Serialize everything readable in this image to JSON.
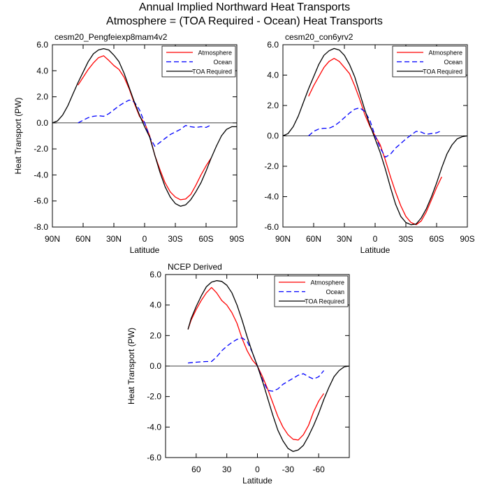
{
  "figure": {
    "title": "Annual Implied Northward Heat Transports",
    "subtitle": "Atmosphere = (TOA Required - Ocean) Heat Transports"
  },
  "colors": {
    "atmosphere": "#ff0000",
    "ocean": "#0000ff",
    "toa": "#000000"
  },
  "chart_data": [
    {
      "type": "line",
      "title": "cesm20_Pengfeiexp8mam4v2",
      "xlabel": "Latitude",
      "ylabel": "Heat Transport (PW)",
      "xlim": [
        90,
        -90
      ],
      "ylim": [
        -8,
        6
      ],
      "xticks": [
        90,
        60,
        30,
        0,
        -30,
        -60,
        -90
      ],
      "xtick_labels": [
        "90N",
        "60N",
        "30N",
        "0",
        "30S",
        "60S",
        "90S"
      ],
      "yticks": [
        -8,
        -6,
        -4,
        -2,
        0,
        2,
        4,
        6
      ],
      "ytick_labels": [
        "-8.0",
        "-6.0",
        "-4.0",
        "-2.0",
        "0.0",
        "2.0",
        "4.0",
        "6.0"
      ],
      "legend": "top-right",
      "series": [
        {
          "name": "Atmosphere",
          "style": "solid",
          "color": "#ff0000",
          "x": [
            65,
            60,
            55,
            50,
            45,
            40,
            35,
            30,
            25,
            20,
            15,
            10,
            5,
            0,
            -5,
            -10,
            -15,
            -20,
            -25,
            -30,
            -35,
            -40,
            -45,
            -50,
            -55,
            -60,
            -65
          ],
          "y": [
            2.9,
            3.5,
            4.1,
            4.6,
            5.0,
            5.15,
            4.8,
            4.4,
            4.1,
            3.5,
            2.6,
            1.5,
            0.5,
            0.0,
            -1.0,
            -2.5,
            -3.6,
            -4.6,
            -5.3,
            -5.7,
            -5.9,
            -5.85,
            -5.5,
            -4.8,
            -4.0,
            -3.3,
            -2.7
          ]
        },
        {
          "name": "Ocean",
          "style": "dashed",
          "color": "#0000ff",
          "x": [
            65,
            60,
            55,
            50,
            45,
            40,
            35,
            30,
            25,
            20,
            15,
            10,
            5,
            0,
            -5,
            -10,
            -15,
            -20,
            -25,
            -30,
            -35,
            -40,
            -45,
            -50,
            -55,
            -60,
            -65
          ],
          "y": [
            0.0,
            0.2,
            0.4,
            0.5,
            0.55,
            0.5,
            0.7,
            1.0,
            1.3,
            1.55,
            1.75,
            1.6,
            1.0,
            0.0,
            -1.1,
            -1.8,
            -1.5,
            -1.2,
            -0.9,
            -0.7,
            -0.5,
            -0.2,
            -0.3,
            -0.35,
            -0.3,
            -0.35,
            -0.15
          ]
        },
        {
          "name": "TOA Required",
          "style": "solid",
          "color": "#000000",
          "x": [
            90,
            85,
            80,
            75,
            70,
            65,
            60,
            55,
            50,
            45,
            40,
            35,
            30,
            25,
            20,
            15,
            10,
            5,
            0,
            -5,
            -10,
            -15,
            -20,
            -25,
            -30,
            -35,
            -40,
            -45,
            -50,
            -55,
            -60,
            -65,
            -70,
            -75,
            -80,
            -85,
            -90
          ],
          "y": [
            0.0,
            0.15,
            0.6,
            1.3,
            2.2,
            3.1,
            3.9,
            4.7,
            5.3,
            5.6,
            5.7,
            5.6,
            5.2,
            4.7,
            3.8,
            2.7,
            1.6,
            0.6,
            -0.3,
            -1.1,
            -2.5,
            -3.8,
            -4.9,
            -5.7,
            -6.2,
            -6.4,
            -6.3,
            -5.9,
            -5.3,
            -4.6,
            -3.7,
            -2.7,
            -1.8,
            -1.0,
            -0.5,
            -0.3,
            -0.3
          ]
        }
      ]
    },
    {
      "type": "line",
      "title": "cesm20_con6yrv2",
      "xlabel": "Latitude",
      "ylabel": "",
      "xlim": [
        90,
        -90
      ],
      "ylim": [
        -6,
        6
      ],
      "xticks": [
        90,
        60,
        30,
        0,
        -30,
        -60,
        -90
      ],
      "xtick_labels": [
        "90N",
        "60N",
        "30N",
        "0",
        "30S",
        "60S",
        "90S"
      ],
      "yticks": [
        -6,
        -4,
        -2,
        0,
        2,
        4,
        6
      ],
      "ytick_labels": [
        "-6.0",
        "-4.0",
        "-2.0",
        "0.0",
        "2.0",
        "4.0",
        "6.0"
      ],
      "legend": "top-right",
      "series": [
        {
          "name": "Atmosphere",
          "style": "solid",
          "color": "#ff0000",
          "x": [
            65,
            60,
            55,
            50,
            45,
            40,
            35,
            30,
            25,
            20,
            15,
            10,
            5,
            0,
            -5,
            -10,
            -15,
            -20,
            -25,
            -30,
            -35,
            -40,
            -45,
            -50,
            -55,
            -60,
            -65
          ],
          "y": [
            2.6,
            3.3,
            3.9,
            4.5,
            4.9,
            5.1,
            4.9,
            4.5,
            4.1,
            3.3,
            2.4,
            1.4,
            0.6,
            0.0,
            -0.6,
            -1.6,
            -2.7,
            -3.7,
            -4.6,
            -5.3,
            -5.7,
            -5.85,
            -5.6,
            -5.0,
            -4.2,
            -3.4,
            -2.7
          ]
        },
        {
          "name": "Ocean",
          "style": "dashed",
          "color": "#0000ff",
          "x": [
            65,
            60,
            55,
            50,
            45,
            40,
            35,
            30,
            25,
            20,
            15,
            10,
            5,
            0,
            -5,
            -10,
            -15,
            -20,
            -25,
            -30,
            -35,
            -40,
            -45,
            -50,
            -55,
            -60,
            -65
          ],
          "y": [
            0.0,
            0.3,
            0.45,
            0.5,
            0.5,
            0.65,
            0.9,
            1.2,
            1.5,
            1.75,
            1.85,
            1.6,
            1.0,
            0.0,
            -0.8,
            -1.4,
            -1.2,
            -0.8,
            -0.5,
            -0.2,
            0.05,
            0.3,
            0.25,
            0.1,
            0.15,
            0.2,
            0.35
          ]
        },
        {
          "name": "TOA Required",
          "style": "solid",
          "color": "#000000",
          "x": [
            90,
            85,
            80,
            75,
            70,
            65,
            60,
            55,
            50,
            45,
            40,
            35,
            30,
            25,
            20,
            15,
            10,
            5,
            0,
            -5,
            -10,
            -15,
            -20,
            -25,
            -30,
            -35,
            -40,
            -45,
            -50,
            -55,
            -60,
            -65,
            -70,
            -75,
            -80,
            -85,
            -90
          ],
          "y": [
            0.0,
            0.15,
            0.6,
            1.3,
            2.2,
            3.1,
            3.9,
            4.7,
            5.3,
            5.6,
            5.75,
            5.65,
            5.3,
            4.7,
            3.9,
            2.8,
            1.7,
            0.7,
            -0.2,
            -1.1,
            -2.2,
            -3.4,
            -4.5,
            -5.3,
            -5.7,
            -5.85,
            -5.8,
            -5.4,
            -4.8,
            -4.0,
            -3.1,
            -2.1,
            -1.2,
            -0.6,
            -0.2,
            -0.05,
            0.0
          ]
        }
      ]
    },
    {
      "type": "line",
      "title": "NCEP Derived",
      "xlabel": "Latitude",
      "ylabel": "Heat Transport (PW)",
      "xlim": [
        90,
        -90
      ],
      "ylim": [
        -6,
        6
      ],
      "xticks": [
        60,
        30,
        0,
        -30,
        -60
      ],
      "xtick_labels": [
        "60",
        "30",
        "0",
        "-30",
        "-60"
      ],
      "yticks": [
        -6,
        -4,
        -2,
        0,
        2,
        4,
        6
      ],
      "ytick_labels": [
        "-6.0",
        "-4.0",
        "-2.0",
        "0.0",
        "2.0",
        "4.0",
        "6.0"
      ],
      "legend": "top-right",
      "series": [
        {
          "name": "Atmosphere",
          "style": "solid",
          "color": "#ff0000",
          "x": [
            68,
            65,
            60,
            55,
            50,
            45,
            40,
            35,
            30,
            25,
            20,
            15,
            10,
            5,
            0,
            -5,
            -10,
            -15,
            -20,
            -25,
            -30,
            -35,
            -40,
            -45,
            -50,
            -55,
            -60,
            -65
          ],
          "y": [
            2.4,
            3.0,
            3.7,
            4.3,
            4.8,
            5.15,
            4.8,
            4.3,
            4.0,
            3.5,
            2.8,
            1.8,
            1.0,
            0.4,
            0.0,
            -0.7,
            -1.5,
            -2.4,
            -3.3,
            -4.0,
            -4.5,
            -4.8,
            -4.85,
            -4.5,
            -3.9,
            -3.0,
            -2.3,
            -1.8
          ]
        },
        {
          "name": "Ocean",
          "style": "dashed",
          "color": "#0000ff",
          "x": [
            68,
            65,
            60,
            55,
            50,
            45,
            40,
            35,
            30,
            25,
            20,
            15,
            10,
            5,
            0,
            -5,
            -10,
            -15,
            -20,
            -25,
            -30,
            -35,
            -40,
            -45,
            -50,
            -55,
            -60,
            -65
          ],
          "y": [
            0.2,
            0.22,
            0.25,
            0.28,
            0.3,
            0.3,
            0.6,
            1.0,
            1.3,
            1.55,
            1.75,
            1.85,
            1.6,
            0.9,
            0.0,
            -0.9,
            -1.6,
            -1.65,
            -1.5,
            -1.2,
            -1.0,
            -0.8,
            -0.6,
            -0.5,
            -0.7,
            -0.85,
            -0.7,
            -0.3
          ]
        },
        {
          "name": "TOA Required",
          "style": "solid",
          "color": "#000000",
          "x": [
            68,
            65,
            60,
            55,
            50,
            45,
            40,
            35,
            30,
            25,
            20,
            15,
            10,
            5,
            0,
            -5,
            -10,
            -15,
            -20,
            -25,
            -30,
            -35,
            -40,
            -45,
            -50,
            -55,
            -60,
            -65,
            -70,
            -75,
            -80,
            -85,
            -90
          ],
          "y": [
            2.4,
            3.1,
            3.9,
            4.6,
            5.2,
            5.5,
            5.6,
            5.55,
            5.3,
            4.8,
            4.0,
            3.0,
            1.9,
            0.9,
            0.0,
            -1.0,
            -2.1,
            -3.2,
            -4.2,
            -4.9,
            -5.4,
            -5.6,
            -5.5,
            -5.2,
            -4.6,
            -3.9,
            -3.1,
            -2.2,
            -1.4,
            -0.7,
            -0.3,
            -0.05,
            0.0
          ]
        }
      ]
    }
  ]
}
